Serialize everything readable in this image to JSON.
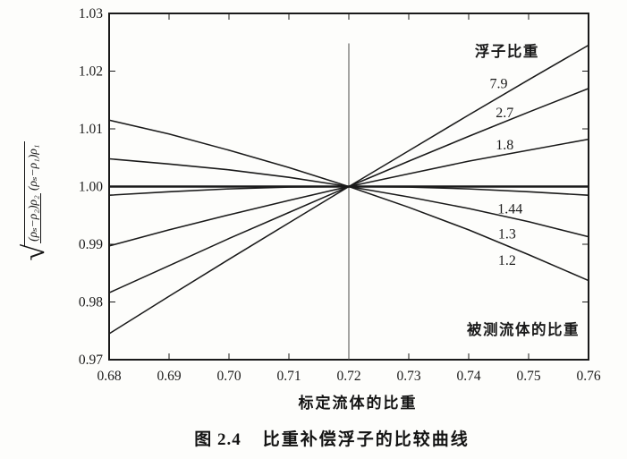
{
  "figure": {
    "caption_label": "图 2.4",
    "caption_title": "比重补偿浮子的比较曲线"
  },
  "axes": {
    "xlabel": "标定流体的比重",
    "ylabel_formula": {
      "radical": "√",
      "numerator": "(ρₛ−ρ₂)ρ₂",
      "denominator": "(ρₛ−ρ₁)ρ₁"
    }
  },
  "chart_data": {
    "type": "line",
    "title": "比重补偿浮子的比较曲线",
    "xlabel": "标定流体的比重",
    "ylabel": "√[(ρₛ−ρ₂)ρ₂ / (ρₛ−ρ₁)ρ₁]",
    "x_range": [
      0.68,
      0.76
    ],
    "y_range": [
      0.97,
      1.03
    ],
    "x_ticks": [
      0.68,
      0.69,
      0.7,
      0.71,
      0.72,
      0.73,
      0.74,
      0.75,
      0.76
    ],
    "x_tick_labels": [
      "0.68",
      "0.69",
      "0.70",
      "0.71",
      "0.72",
      "0.73",
      "0.74",
      "0.75",
      "0.76"
    ],
    "y_ticks": [
      0.97,
      0.98,
      0.99,
      1.0,
      1.01,
      1.02,
      1.03
    ],
    "y_tick_labels": [
      "0.97",
      "0.98",
      "0.99",
      "1.00",
      "1.01",
      "1.02",
      "1.03"
    ],
    "grid": false,
    "line_color": "#1a1a1a",
    "reference_line_y": 1.0,
    "vertical_line_x": 0.72,
    "vertical_line_y_top": 1.0248,
    "crossing_point": {
      "x": 0.72,
      "y": 1.0
    },
    "x": [
      0.68,
      0.69,
      0.7,
      0.71,
      0.72,
      0.73,
      0.74,
      0.75,
      0.76
    ],
    "series": [
      {
        "name": "7.9",
        "label": "7.9",
        "float_sg": 7.9,
        "values": [
          0.9745,
          0.981,
          0.9874,
          0.9937,
          1.0,
          1.0062,
          1.0124,
          1.0185,
          1.0245
        ],
        "label_x": 0.745,
        "label_y": 1.0178
      },
      {
        "name": "2.7",
        "label": "2.7",
        "float_sg": 2.7,
        "values": [
          0.9816,
          0.9863,
          0.991,
          0.9955,
          1.0,
          1.0044,
          1.0087,
          1.0129,
          1.017
        ],
        "label_x": 0.746,
        "label_y": 1.0128
      },
      {
        "name": "1.8",
        "label": "1.8",
        "float_sg": 1.8,
        "values": [
          0.9897,
          0.9925,
          0.9951,
          0.9976,
          1.0,
          1.0022,
          1.0044,
          1.0063,
          1.0082
        ],
        "label_x": 0.746,
        "label_y": 1.0072
      },
      {
        "name": "1.44",
        "label": "1.44",
        "float_sg": 1.44,
        "values": [
          0.9985,
          0.9991,
          0.9996,
          0.9999,
          1.0,
          0.9999,
          0.9996,
          0.9991,
          0.9985
        ],
        "label_x": 0.7469,
        "label_y": 0.9961
      },
      {
        "name": "1.3",
        "label": "1.3",
        "float_sg": 1.3,
        "values": [
          1.0048,
          1.0039,
          1.0029,
          1.0016,
          1.0,
          0.9982,
          0.9962,
          0.9939,
          0.9913
        ],
        "label_x": 0.7464,
        "label_y": 0.9918
      },
      {
        "name": "1.2",
        "label": "1.2",
        "float_sg": 1.2,
        "values": [
          1.0115,
          1.0091,
          1.0063,
          1.0033,
          1.0,
          0.9964,
          0.9925,
          0.9882,
          0.9837
        ],
        "label_x": 0.7464,
        "label_y": 0.9872
      }
    ],
    "annotations": [
      {
        "name": "float-sg-group-label",
        "text": "浮子比重",
        "x": 0.7464,
        "y": 1.0235,
        "bold": true
      },
      {
        "name": "measured-fluid-label",
        "text": "被测流体的比重",
        "x": 0.7491,
        "y": 0.9753,
        "bold": true
      }
    ]
  }
}
